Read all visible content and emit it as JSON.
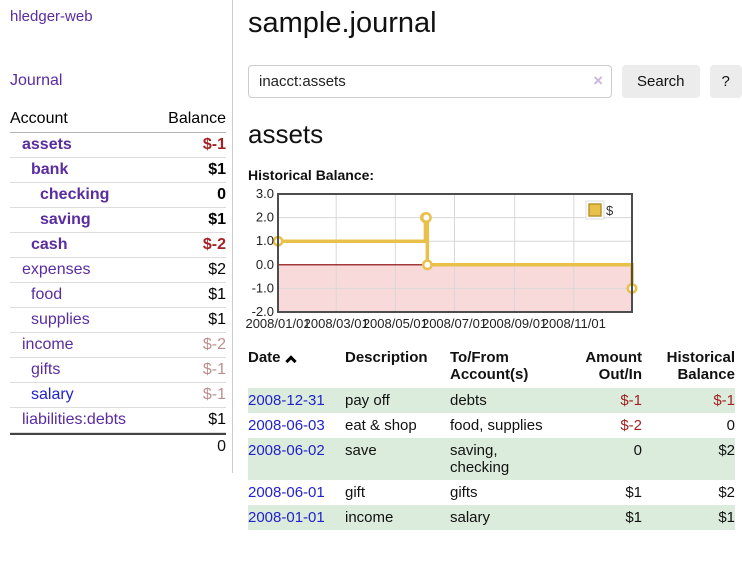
{
  "app": {
    "brand": "hledger-web",
    "nav_journal": "Journal"
  },
  "header": {
    "title": "sample.journal"
  },
  "search": {
    "value": "inacct:assets",
    "clear_icon": "×",
    "button_label": "Search",
    "help_label": "?"
  },
  "sidebar": {
    "columns": {
      "account": "Account",
      "balance": "Balance"
    },
    "accounts": [
      {
        "name": "assets",
        "balance": "$-1",
        "indent": 1,
        "bold": true,
        "link": "visited",
        "balance_style": "neg-strong"
      },
      {
        "name": "bank",
        "balance": "$1",
        "indent": 2,
        "bold": true,
        "link": "visited",
        "balance_style": "normal"
      },
      {
        "name": "checking",
        "balance": "0",
        "indent": 3,
        "bold": true,
        "link": "visited",
        "balance_style": "normal"
      },
      {
        "name": "saving",
        "balance": "$1",
        "indent": 3,
        "bold": true,
        "link": "visited",
        "balance_style": "normal"
      },
      {
        "name": "cash",
        "balance": "$-2",
        "indent": 2,
        "bold": true,
        "link": "visited",
        "balance_style": "neg-strong"
      },
      {
        "name": "expenses",
        "balance": "$2",
        "indent": 1,
        "bold": false,
        "link": "visited",
        "balance_style": "normal"
      },
      {
        "name": "food",
        "balance": "$1",
        "indent": 2,
        "bold": false,
        "link": "visited",
        "balance_style": "normal"
      },
      {
        "name": "supplies",
        "balance": "$1",
        "indent": 2,
        "bold": false,
        "link": "visited",
        "balance_style": "normal"
      },
      {
        "name": "income",
        "balance": "$-2",
        "indent": 1,
        "bold": false,
        "link": "visited",
        "balance_style": "neg-faded"
      },
      {
        "name": "gifts",
        "balance": "$-1",
        "indent": 2,
        "bold": false,
        "link": "visited",
        "balance_style": "neg-faded"
      },
      {
        "name": "salary",
        "balance": "$-1",
        "indent": 2,
        "bold": false,
        "link": "unvisited",
        "balance_style": "neg-faded"
      },
      {
        "name": "liabilities:debts",
        "balance": "$1",
        "indent": 1,
        "bold": false,
        "link": "visited",
        "balance_style": "normal"
      }
    ],
    "total": "0"
  },
  "account_page": {
    "title": "assets",
    "chart_label": "Historical Balance:"
  },
  "chart_data": {
    "type": "line",
    "step": true,
    "title": "Historical Balance",
    "series": [
      {
        "name": "$",
        "points": [
          [
            "2008-01-01",
            1
          ],
          [
            "2008-06-01",
            2
          ],
          [
            "2008-06-02",
            2
          ],
          [
            "2008-06-03",
            0
          ],
          [
            "2008-12-31",
            -1
          ]
        ]
      }
    ],
    "xlim": [
      "2008-01-01",
      "2008-12-31"
    ],
    "ylim": [
      -2,
      3
    ],
    "y_ticks": [
      3.0,
      2.0,
      1.0,
      0.0,
      -1.0,
      -2.0
    ],
    "x_ticks": [
      "2008/01/01",
      "2008/03/01",
      "2008/05/01",
      "2008/07/01",
      "2008/09/01",
      "2008/11/01"
    ],
    "grid": true,
    "legend": {
      "label": "$",
      "position": "top-right"
    },
    "line_color": "#e9c04a",
    "marker_fill": "#ffffff",
    "negative_region_color": "#f9dada",
    "zero_line_color": "#8b0000",
    "border_color": "#4d4d4d",
    "grid_color": "#d8d8d8",
    "legend_swatch_border": "#b8962e"
  },
  "register": {
    "columns": {
      "date": "Date",
      "description": "Description",
      "accounts": "To/From Account(s)",
      "amount": "Amount Out/In",
      "balance": "Historical Balance"
    },
    "sort_icon": "caret-up",
    "rows": [
      {
        "date": "2008-12-31",
        "description": "pay off",
        "accounts": "debts",
        "amount": "$-1",
        "amount_negative": true,
        "balance": "$-1",
        "balance_negative": true
      },
      {
        "date": "2008-06-03",
        "description": "eat & shop",
        "accounts": "food, supplies",
        "amount": "$-2",
        "amount_negative": true,
        "balance": "0",
        "balance_negative": false
      },
      {
        "date": "2008-06-02",
        "description": "save",
        "accounts": "saving, checking",
        "amount": "0",
        "amount_negative": false,
        "balance": "$2",
        "balance_negative": false
      },
      {
        "date": "2008-06-01",
        "description": "gift",
        "accounts": "gifts",
        "amount": "$1",
        "amount_negative": false,
        "balance": "$2",
        "balance_negative": false
      },
      {
        "date": "2008-01-01",
        "description": "income",
        "accounts": "salary",
        "amount": "$1",
        "amount_negative": false,
        "balance": "$1",
        "balance_negative": false
      }
    ]
  },
  "colors": {
    "link-purple": "#5a2ca0",
    "link-blue": "#2222cc",
    "negative-strong": "#a22222",
    "negative-faded": "#bc8f8f",
    "row-green": "#dcecdc",
    "chart-gold": "#e9c04a",
    "chart-pink": "#f9dada",
    "zero-line-red": "#8b0000"
  }
}
